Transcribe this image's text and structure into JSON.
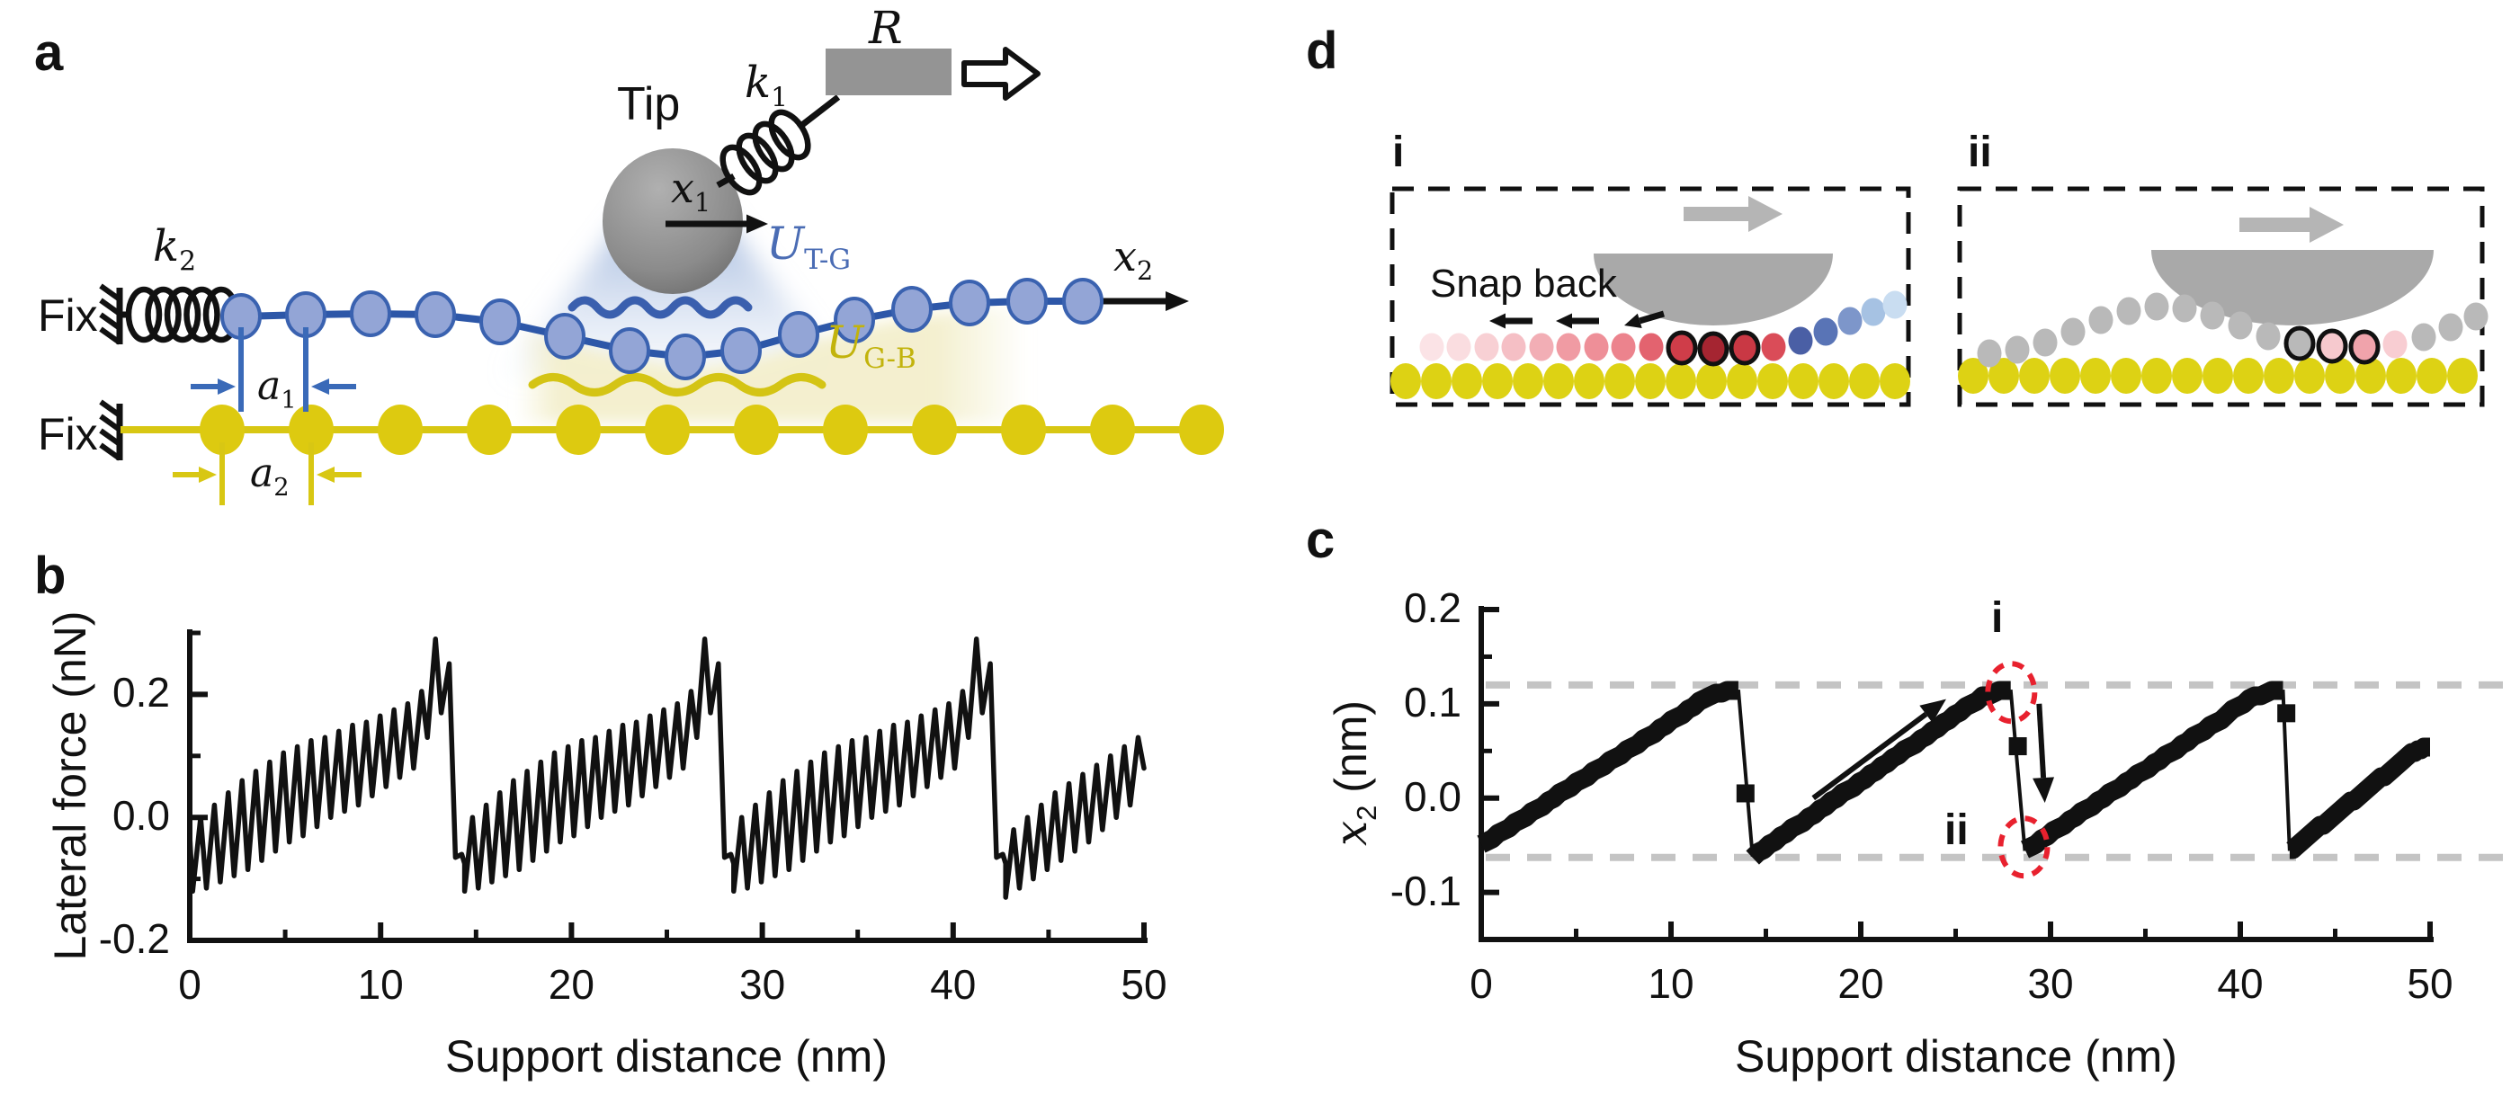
{
  "figure": {
    "background": "#ffffff"
  },
  "panels": {
    "a": {
      "letter": "a",
      "tip_label": "Tip",
      "support_label": "R",
      "fix_top": "Fix",
      "fix_bottom": "Fix",
      "k1": {
        "base": "k",
        "sub": "1"
      },
      "k2": {
        "base": "k",
        "sub": "2"
      },
      "x1": {
        "base": "x",
        "sub": "1"
      },
      "x2": {
        "base": "x",
        "sub": "2"
      },
      "a1": {
        "base": "a",
        "sub": "1"
      },
      "a2": {
        "base": "a",
        "sub": "2"
      },
      "utg": {
        "base": "U",
        "sub": "T-G"
      },
      "ugb": {
        "base": "U",
        "sub": "G-B"
      },
      "colors": {
        "chain_top_fill": "#93a5d6",
        "chain_top_stroke": "#3a62b0",
        "chain_top_line": "#2d57a8",
        "chain_bottom_fill": "#ddca10",
        "chain_bottom_line": "#d8c713",
        "tip_gray_light": "#ababab",
        "tip_gray_dark": "#757575",
        "support_gray": "#949494",
        "utg_text": "#4a6cb4",
        "ugb_text": "#c2b30c",
        "glow_blue": "#9db4da",
        "glow_yellow": "#f3efcd",
        "dim_blue": "#3a6ab8",
        "dim_yellow": "#d8c713",
        "wave_blue": "#3a5fae",
        "wave_yellow": "#d4c414",
        "black": "#111111"
      }
    },
    "b": {
      "letter": "b"
    },
    "c": {
      "letter": "c"
    },
    "d": {
      "letter": "d",
      "sub_i": "i",
      "sub_ii": "ii",
      "snap_back": "Snap back",
      "colors": {
        "tip": "#a9a9a9",
        "big_arrow": "#b5b5b5",
        "substrate": "#ddd214",
        "outline": "#111111",
        "gray_atom": "#b9b9b9",
        "box_dash": "#111111"
      },
      "chain_i": [
        {
          "c": "#fbe3e6",
          "o": 0
        },
        {
          "c": "#fadde0",
          "o": 0
        },
        {
          "c": "#f8d0d4",
          "o": 0
        },
        {
          "c": "#f5bfc5",
          "o": 0
        },
        {
          "c": "#f2aeb5",
          "o": 0
        },
        {
          "c": "#f09ba3",
          "o": 0
        },
        {
          "c": "#ee8f98",
          "o": 0
        },
        {
          "c": "#ec838d",
          "o": 0
        },
        {
          "c": "#e3636f",
          "o": 0
        },
        {
          "c": "#cf3d49",
          "o": 1
        },
        {
          "c": "#a52531",
          "o": 1
        },
        {
          "c": "#c93844",
          "o": 1
        },
        {
          "c": "#da4c58",
          "o": 0
        },
        {
          "c": "#4a5fa5",
          "o": 0
        },
        {
          "c": "#5974b6",
          "o": 0
        },
        {
          "c": "#7d96ca",
          "o": 0
        },
        {
          "c": "#a6c2e3",
          "o": 0
        },
        {
          "c": "#c9ddf1",
          "o": 0
        }
      ],
      "chain_ii": [
        {
          "c": "#b9b9b9",
          "o": 0
        },
        {
          "c": "#b9b9b9",
          "o": 0
        },
        {
          "c": "#b9b9b9",
          "o": 0
        },
        {
          "c": "#b9b9b9",
          "o": 0
        },
        {
          "c": "#b9b9b9",
          "o": 0
        },
        {
          "c": "#b9b9b9",
          "o": 0
        },
        {
          "c": "#b9b9b9",
          "o": 0
        },
        {
          "c": "#b9b9b9",
          "o": 0
        },
        {
          "c": "#b9b9b9",
          "o": 0
        },
        {
          "c": "#b9b9b9",
          "o": 0
        },
        {
          "c": "#b9b9b9",
          "o": 0
        },
        {
          "c": "#b9b9b9",
          "o": 1
        },
        {
          "c": "#f6c9ce",
          "o": 1
        },
        {
          "c": "#f0a3ab",
          "o": 1
        },
        {
          "c": "#f8cdd2",
          "o": 0
        },
        {
          "c": "#b9b9b9",
          "o": 0
        },
        {
          "c": "#b9b9b9",
          "o": 0
        },
        {
          "c": "#b9b9b9",
          "o": 0
        }
      ]
    }
  },
  "chart_data": [
    {
      "type": "line",
      "panel": "b",
      "title": "",
      "xlabel": "Support distance (nm)",
      "ylabel": "Lateral force (nN)",
      "xlim": [
        0,
        50
      ],
      "ylim": [
        -0.2,
        0.3
      ],
      "grid": false,
      "legend": false,
      "line_color": "#111111",
      "xticks_major": [
        0,
        10,
        20,
        30,
        40,
        50
      ],
      "xtick_labels": [
        "0",
        "10",
        "20",
        "30",
        "40",
        "50"
      ],
      "xticks_minor": [
        5,
        15,
        25,
        35,
        45
      ],
      "yticks_major": [
        0.2,
        0,
        -0.2
      ],
      "ytick_labels": [
        "0.2",
        "0.0",
        "-0.2"
      ],
      "yticks_minor": [
        0.3,
        0.1,
        -0.1
      ],
      "description": "Stick-slip friction trace: fast atomic-scale sawtooth oscillations on a rising envelope with large slip drops every ~14.1 nm",
      "stick_slip_model": {
        "start_point": [
          0,
          -0.03
        ],
        "major_slip_x": [
          13.9,
          28.0,
          42.25
        ],
        "segment_start_x": [
          0.15,
          14.4,
          28.5
        ],
        "cycles_per_segment": 19,
        "rise_fraction": 0.58,
        "cycle_min_envelope": [
          -0.12,
          -0.115,
          -0.105,
          -0.095,
          -0.085,
          -0.07,
          -0.055,
          -0.04,
          -0.03,
          -0.015,
          0,
          0.01,
          0.02,
          0.035,
          0.05,
          0.065,
          0.08,
          0.13,
          0.17
        ],
        "cycle_max_envelope": [
          0,
          0.02,
          0.04,
          0.06,
          0.075,
          0.09,
          0.105,
          0.115,
          0.125,
          0.13,
          0.14,
          0.15,
          0.155,
          0.165,
          0.175,
          0.185,
          0.205,
          0.29,
          0.25
        ],
        "post_slip_points": [
          -0.065,
          -0.06,
          -0.075
        ],
        "final_segment": {
          "start_x": 42.75,
          "end_x": 50,
          "cycle_min_envelope": [
            -0.13,
            -0.115,
            -0.1,
            -0.085,
            -0.07,
            -0.055,
            -0.04,
            -0.02,
            0,
            0.02
          ],
          "cycle_max_envelope": [
            -0.02,
            0,
            0.02,
            0.04,
            0.055,
            0.07,
            0.085,
            0.1,
            0.115,
            0.13
          ],
          "end_point": [
            50,
            0.08
          ]
        }
      }
    },
    {
      "type": "line",
      "panel": "c",
      "title": "",
      "xlabel": "Support distance (nm)",
      "ylabel": "x2 (nm)",
      "ylabel_base": "x",
      "ylabel_sub": "2",
      "ylabel_unit": " (nm)",
      "xlim": [
        0,
        50
      ],
      "ylim": [
        -0.15,
        0.2
      ],
      "grid": false,
      "line_color": "#111111",
      "guide_color": "#c4c4c4",
      "xticks_major": [
        0,
        10,
        20,
        30,
        40,
        50
      ],
      "xtick_labels": [
        "0",
        "10",
        "20",
        "30",
        "40",
        "50"
      ],
      "xticks_minor": [
        5,
        15,
        25,
        35,
        45
      ],
      "yticks_major": [
        0.2,
        0.1,
        0,
        -0.1
      ],
      "ytick_labels": [
        "0.2",
        "0.1",
        "0.0",
        "-0.1"
      ],
      "yticks_minor": [
        0.15,
        0.05,
        -0.05
      ],
      "dashed_guides": [
        0.12,
        -0.063
      ],
      "ramps": [
        {
          "x0": 0,
          "y0": -0.05,
          "x1": 13.55,
          "y1": 0.115
        },
        {
          "x0": 14.3,
          "y0": -0.062,
          "x1": 27.9,
          "y1": 0.115
        },
        {
          "x0": 28.65,
          "y0": -0.056,
          "x1": 42.25,
          "y1": 0.115
        },
        {
          "x0": 42.6,
          "y0": -0.056,
          "x1": 50,
          "y1": 0.054
        }
      ],
      "drops": [
        {
          "x_top": 13.55,
          "y_top": 0.115,
          "x_bottom": 14.3,
          "y_bottom": -0.062,
          "mid_marker": 0.005
        },
        {
          "x_top": 27.9,
          "y_top": 0.115,
          "x_bottom": 28.65,
          "y_bottom": -0.056,
          "mid_marker": 0.055
        },
        {
          "x_top": 42.25,
          "y_top": 0.115,
          "x_bottom": 42.6,
          "y_bottom": -0.056,
          "mid_marker": 0.09
        }
      ],
      "annotations": {
        "i": {
          "label": "i",
          "x": 27.93,
          "y": 0.112
        },
        "ii": {
          "label": "ii",
          "x": 28.6,
          "y": -0.052
        },
        "circle_color": "#e8212e",
        "rise_arrow": {
          "x0": 17.5,
          "y0": 0.0,
          "x1": 24.5,
          "y1": 0.105
        },
        "slip_arrow": {
          "x0": 29.4,
          "y0": 0.1,
          "x1": 29.7,
          "y1": -0.005
        }
      }
    }
  ]
}
